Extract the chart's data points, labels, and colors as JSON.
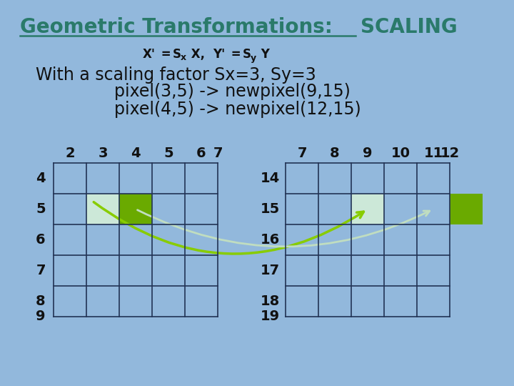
{
  "title_part1": "Geometric Transformations: ",
  "title_part2": "SCALING",
  "title_color": "#2a7a6a",
  "bg_color": "#92b8dc",
  "desc_line1": "With a scaling factor Sx=3, Sy=3",
  "desc_line2": "pixel(3,5) -> newpixel(9,15)",
  "desc_line3": "pixel(4,5) -> newpixel(12,15)",
  "grid1_cols": [
    2,
    3,
    4,
    5,
    6,
    7
  ],
  "grid1_rows": [
    4,
    5,
    6,
    7,
    8,
    9
  ],
  "grid2_cols": [
    7,
    8,
    9,
    10,
    11,
    12
  ],
  "grid2_rows": [
    14,
    15,
    16,
    17,
    18,
    19
  ],
  "grid_line_color": "#223355",
  "grid_fill_color": "#92b8dc",
  "cell_light_color": "#cce8d8",
  "cell_dark_color": "#6aaa00",
  "arrow1_color": "#88cc00",
  "arrow2_color": "#c0ddc0",
  "text_color": "#111111"
}
